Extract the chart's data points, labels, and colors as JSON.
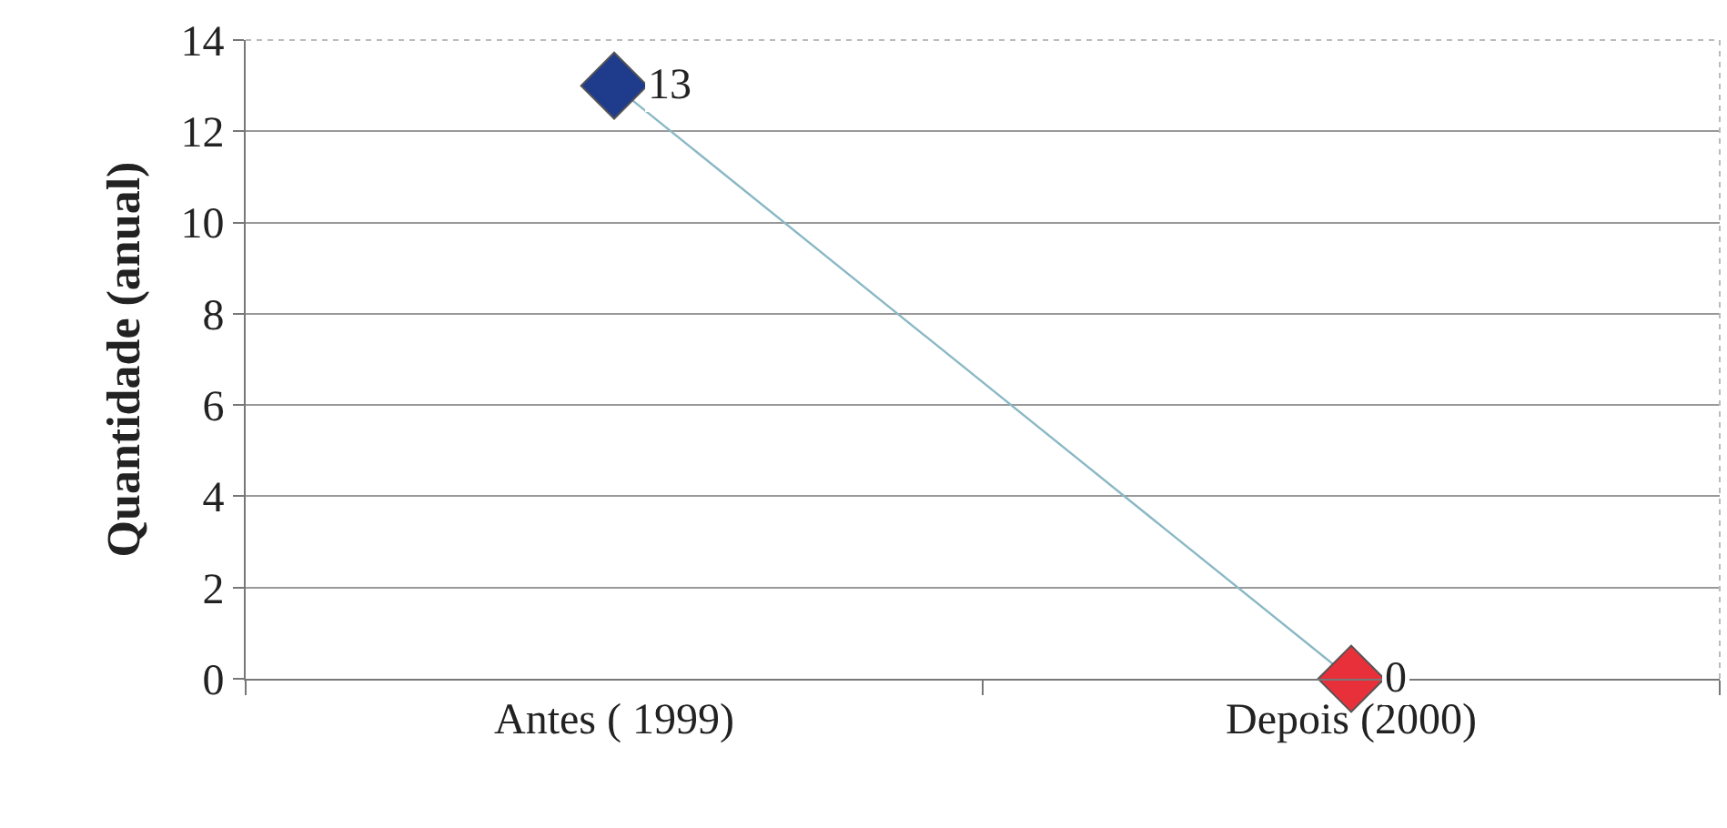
{
  "chart_data": {
    "type": "line",
    "ylabel": "Quantidade (anual)",
    "categories": [
      "Antes ( 1999)",
      "Depois (2000)"
    ],
    "series": [
      {
        "color": "#8ab8c4",
        "colors": [
          "#1f3b8c",
          "#e8303a"
        ],
        "values": [
          13,
          0
        ]
      }
    ],
    "ylim": [
      0,
      14
    ],
    "yticks": [
      0,
      2,
      4,
      6,
      8,
      10,
      12,
      14
    ],
    "grid": "y",
    "legend": false,
    "marker": "diamond",
    "line_style": "solid",
    "data_labels": true
  }
}
